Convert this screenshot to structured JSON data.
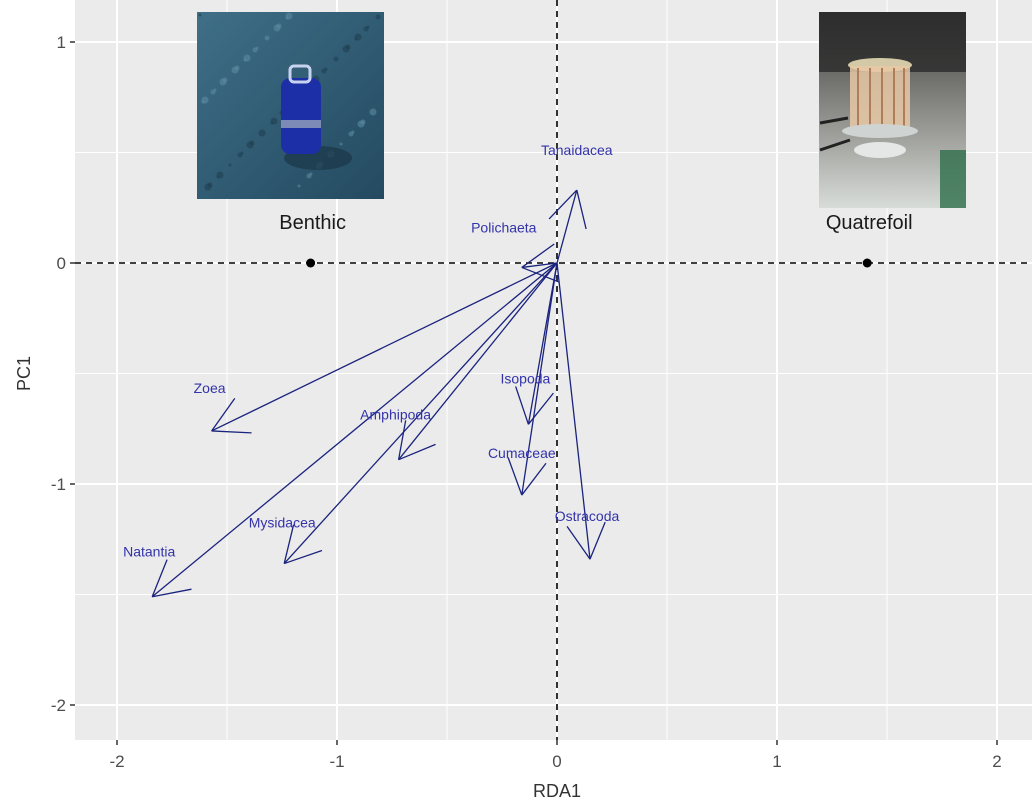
{
  "chart_data": {
    "type": "scatter",
    "title": "",
    "xlabel": "RDA1",
    "ylabel": "PC1",
    "xlim": [
      -2.2,
      2.1
    ],
    "ylim": [
      -2.2,
      1.1
    ],
    "x_ticks": [
      -2,
      -1,
      0,
      1,
      2
    ],
    "y_ticks": [
      1,
      0,
      -1,
      -2
    ],
    "grid": true,
    "zero_lines": "dashed",
    "colors": {
      "panel": "#ebebeb",
      "grid": "#ffffff",
      "arrows": "#1a237e",
      "labels": "#3333aa",
      "sites": "#000000"
    },
    "sites": [
      {
        "name": "Benthic",
        "x": -1.12,
        "y": 0.0,
        "photo": "benthic-trap-photo"
      },
      {
        "name": "Quatrefoil",
        "x": 1.41,
        "y": 0.0,
        "photo": "quatrefoil-trap-photo"
      }
    ],
    "species": [
      {
        "name": "Tanaidacea",
        "x": 0.09,
        "y": 0.33
      },
      {
        "name": "Polichaeta",
        "x": -0.16,
        "y": -0.02
      },
      {
        "name": "Isopoda",
        "x": -0.13,
        "y": -0.73
      },
      {
        "name": "Amphipoda",
        "x": -0.72,
        "y": -0.89
      },
      {
        "name": "Zoea",
        "x": -1.57,
        "y": -0.76
      },
      {
        "name": "Cumaceae",
        "x": -0.16,
        "y": -1.05
      },
      {
        "name": "Ostracoda",
        "x": 0.15,
        "y": -1.34
      },
      {
        "name": "Mysidacea",
        "x": -1.24,
        "y": -1.36
      },
      {
        "name": "Natantia",
        "x": -1.84,
        "y": -1.51
      }
    ]
  }
}
